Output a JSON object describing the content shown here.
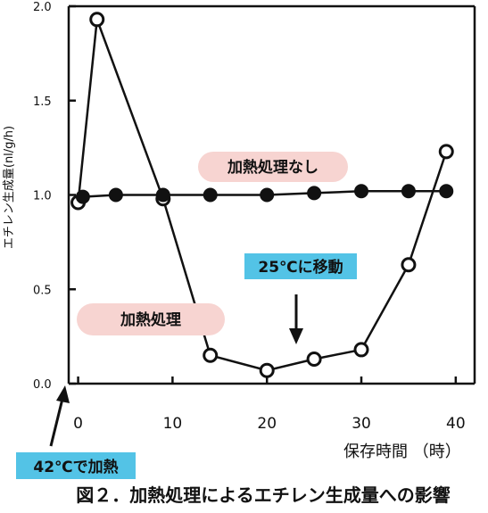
{
  "chart_data": {
    "type": "line",
    "ylabel": "エチレン生成量(nl/g/h)",
    "xlabel": "保存時間 （時）",
    "caption": "図２．加熱処理によるエチレン生成量への影響",
    "xlim": [
      -1,
      42
    ],
    "ylim": [
      0,
      2.0
    ],
    "xticks": [
      "0",
      "10",
      "20",
      "30",
      "40"
    ],
    "xtick_values": [
      0,
      10,
      20,
      30,
      40
    ],
    "yticks": [
      "0.0",
      "0.5",
      "1.0",
      "1.5",
      "2.0"
    ],
    "ytick_values": [
      0,
      0.5,
      1.0,
      1.5,
      2.0
    ],
    "grid": false,
    "series": [
      {
        "name": "加熱処理",
        "marker": "open-circle",
        "x": [
          0,
          2,
          9,
          14,
          20,
          25,
          30,
          35,
          39
        ],
        "y": [
          0.96,
          1.93,
          0.98,
          0.15,
          0.07,
          0.13,
          0.18,
          0.63,
          1.23
        ]
      },
      {
        "name": "加熱処理なし",
        "marker": "filled-circle",
        "x": [
          0.5,
          4,
          9,
          14,
          20,
          25,
          30,
          35,
          39
        ],
        "y": [
          0.99,
          1.0,
          1.0,
          1.0,
          1.0,
          1.01,
          1.02,
          1.02,
          1.02
        ]
      }
    ],
    "annotations": {
      "move": "25℃に移動",
      "heat_start": "42℃で加熱"
    },
    "colors": {
      "series_label_bg": "#f7d4d1",
      "annotation_bg": "#53c3e6",
      "line": "#111111"
    }
  }
}
